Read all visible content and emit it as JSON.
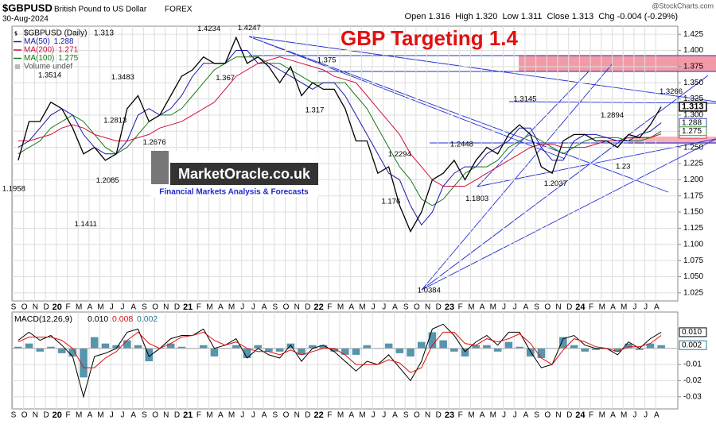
{
  "header": {
    "symbol": "$GBPUSD",
    "name": "British Pound to US Dollar",
    "exchange": "FOREX",
    "date": "30-Aug-2024",
    "quote": "Open 1.316  High 1.320  Low 1.311  Close 1.313  Chg -0.004 (-0.29%)",
    "source": "@StockCharts.com"
  },
  "logo": {
    "title": "MarketOracle.co.uk",
    "subtitle": "Financial Markets Analysis & Forecasts"
  },
  "chart_data": [
    {
      "type": "line",
      "title": "GBP Targeting 1.4",
      "title_color": "#e01010",
      "categories": [
        "S",
        "O",
        "N",
        "D",
        "20",
        "F",
        "M",
        "A",
        "M",
        "J",
        "J",
        "A",
        "S",
        "O",
        "N",
        "D",
        "21",
        "F",
        "M",
        "A",
        "M",
        "J",
        "J",
        "A",
        "S",
        "O",
        "N",
        "D",
        "22",
        "F",
        "M",
        "A",
        "M",
        "J",
        "J",
        "A",
        "S",
        "O",
        "N",
        "D",
        "23",
        "F",
        "M",
        "A",
        "M",
        "J",
        "J",
        "A",
        "S",
        "O",
        "N",
        "D",
        "24",
        "F",
        "M",
        "A",
        "M",
        "J",
        "J",
        "A"
      ],
      "series": [
        {
          "name": "$GBPUSD (Daily)",
          "legend_value": "1.313",
          "color": "#000000",
          "width": 1.3,
          "values": [
            1.23,
            1.29,
            1.29,
            1.32,
            1.31,
            1.28,
            1.24,
            1.25,
            1.23,
            1.24,
            1.31,
            1.33,
            1.29,
            1.3,
            1.33,
            1.36,
            1.37,
            1.39,
            1.38,
            1.38,
            1.42,
            1.38,
            1.39,
            1.375,
            1.35,
            1.375,
            1.33,
            1.35,
            1.34,
            1.34,
            1.31,
            1.26,
            1.26,
            1.21,
            1.22,
            1.16,
            1.12,
            1.15,
            1.2,
            1.21,
            1.23,
            1.2,
            1.23,
            1.25,
            1.24,
            1.27,
            1.285,
            1.27,
            1.22,
            1.21,
            1.26,
            1.27,
            1.27,
            1.26,
            1.26,
            1.25,
            1.27,
            1.265,
            1.285,
            1.313
          ]
        },
        {
          "name": "MA(50)",
          "legend_value": "1.288",
          "color": "#1a1aa8",
          "width": 1,
          "values": [
            1.25,
            1.26,
            1.28,
            1.3,
            1.31,
            1.3,
            1.27,
            1.25,
            1.24,
            1.24,
            1.26,
            1.3,
            1.31,
            1.3,
            1.31,
            1.33,
            1.36,
            1.38,
            1.38,
            1.38,
            1.4,
            1.4,
            1.38,
            1.38,
            1.37,
            1.36,
            1.35,
            1.34,
            1.35,
            1.35,
            1.33,
            1.3,
            1.27,
            1.24,
            1.21,
            1.2,
            1.16,
            1.13,
            1.15,
            1.19,
            1.21,
            1.22,
            1.22,
            1.24,
            1.25,
            1.26,
            1.28,
            1.28,
            1.25,
            1.23,
            1.23,
            1.26,
            1.27,
            1.27,
            1.265,
            1.26,
            1.26,
            1.27,
            1.275,
            1.288
          ]
        },
        {
          "name": "MA(200)",
          "legend_value": "1.271",
          "color": "#d0103a",
          "width": 1,
          "values": [
            1.26,
            1.26,
            1.265,
            1.27,
            1.28,
            1.285,
            1.28,
            1.27,
            1.265,
            1.26,
            1.26,
            1.265,
            1.27,
            1.28,
            1.285,
            1.29,
            1.3,
            1.31,
            1.32,
            1.34,
            1.36,
            1.37,
            1.38,
            1.385,
            1.39,
            1.385,
            1.38,
            1.375,
            1.37,
            1.36,
            1.355,
            1.35,
            1.33,
            1.31,
            1.29,
            1.27,
            1.24,
            1.22,
            1.2,
            1.19,
            1.19,
            1.19,
            1.2,
            1.21,
            1.22,
            1.23,
            1.24,
            1.25,
            1.255,
            1.255,
            1.25,
            1.25,
            1.25,
            1.255,
            1.26,
            1.26,
            1.265,
            1.265,
            1.265,
            1.271
          ]
        },
        {
          "name": "MA(100)",
          "legend_value": "1.275",
          "color": "#157a15",
          "width": 1,
          "values": [
            1.24,
            1.25,
            1.26,
            1.28,
            1.29,
            1.3,
            1.29,
            1.27,
            1.25,
            1.24,
            1.25,
            1.27,
            1.29,
            1.3,
            1.3,
            1.31,
            1.33,
            1.35,
            1.37,
            1.38,
            1.39,
            1.39,
            1.39,
            1.38,
            1.38,
            1.37,
            1.36,
            1.35,
            1.35,
            1.35,
            1.35,
            1.33,
            1.31,
            1.28,
            1.25,
            1.22,
            1.2,
            1.17,
            1.16,
            1.17,
            1.19,
            1.21,
            1.22,
            1.22,
            1.23,
            1.25,
            1.26,
            1.27,
            1.26,
            1.25,
            1.24,
            1.25,
            1.26,
            1.265,
            1.265,
            1.265,
            1.26,
            1.26,
            1.265,
            1.275
          ]
        }
      ],
      "extra_legend": "Volume undef",
      "annotations": [
        1.1958,
        1.3514,
        1.1411,
        1.2813,
        1.2085,
        1.3483,
        1.2676,
        1.4234,
        1.367,
        1.4247,
        1.375,
        1.317,
        1.2294,
        1.176,
        1.0384,
        1.2448,
        1.1803,
        1.3145,
        1.2037,
        1.2894,
        1.23,
        1.3266
      ],
      "ylim": [
        1.0125,
        1.4375
      ],
      "yticks": [
        1.025,
        {
          "value": 1.05,
          "label": "1.050"
        },
        1.075,
        {
          "value": 1.1,
          "label": "1.100"
        },
        1.125,
        {
          "value": 1.15,
          "label": "1.150"
        },
        1.175,
        {
          "value": 1.2,
          "label": "1.200"
        },
        1.225,
        {
          "value": 1.25,
          "label": "1.250"
        },
        1.275,
        {
          "value": 1.3,
          "label": "1.300"
        },
        1.325,
        {
          "value": 1.35,
          "label": "1.350"
        },
        1.375,
        {
          "value": 1.4,
          "label": "1.400"
        },
        1.425
      ],
      "grid": true
    },
    {
      "type": "macd",
      "label": "MACD(12,26,9)",
      "legend_values": [
        "0.010",
        "0.008",
        "0.002"
      ],
      "series": [
        {
          "color": "#000000",
          "values": [
            0.005,
            0.01,
            0.005,
            0.008,
            0.002,
            -0.005,
            -0.03,
            -0.005,
            -0.003,
            0.0,
            0.01,
            0.012,
            -0.005,
            0.0,
            0.006,
            0.008,
            0.008,
            0.012,
            0.0,
            0.002,
            0.006,
            -0.006,
            0.0,
            -0.004,
            -0.006,
            0.002,
            -0.008,
            0.0,
            0.002,
            -0.002,
            -0.008,
            -0.014,
            -0.008,
            -0.01,
            -0.004,
            -0.012,
            -0.02,
            -0.008,
            0.012,
            0.015,
            0.008,
            -0.002,
            0.004,
            0.008,
            0.002,
            0.01,
            0.01,
            -0.002,
            -0.012,
            -0.01,
            0.006,
            0.008,
            0.002,
            0.0,
            0.0,
            -0.004,
            0.004,
            0.0,
            0.006,
            0.01
          ]
        },
        {
          "color": "#e01010",
          "values": [
            0.004,
            0.007,
            0.007,
            0.007,
            0.005,
            0.0,
            -0.012,
            -0.012,
            -0.006,
            -0.002,
            0.005,
            0.01,
            0.003,
            0.0,
            0.003,
            0.007,
            0.008,
            0.01,
            0.005,
            0.002,
            0.004,
            0.0,
            -0.002,
            -0.002,
            -0.004,
            -0.001,
            -0.004,
            -0.002,
            0.0,
            0.0,
            -0.004,
            -0.01,
            -0.01,
            -0.01,
            -0.007,
            -0.009,
            -0.015,
            -0.012,
            0.002,
            0.01,
            0.01,
            0.003,
            0.002,
            0.006,
            0.004,
            0.006,
            0.009,
            0.003,
            -0.006,
            -0.01,
            -0.001,
            0.006,
            0.004,
            0.001,
            0.0,
            -0.002,
            0.001,
            0.001,
            0.003,
            0.008
          ]
        },
        {
          "color": "#2a7a9a",
          "kind": "histogram",
          "values": [
            0.001,
            0.003,
            -0.002,
            0.001,
            -0.003,
            -0.005,
            -0.018,
            0.007,
            0.003,
            0.002,
            0.005,
            0.002,
            -0.008,
            0.0,
            0.003,
            0.001,
            0.0,
            0.002,
            -0.005,
            0.0,
            0.002,
            -0.006,
            0.002,
            -0.002,
            -0.002,
            0.003,
            -0.004,
            0.002,
            0.002,
            -0.002,
            -0.004,
            -0.004,
            0.002,
            0.0,
            0.003,
            -0.003,
            -0.005,
            0.004,
            0.01,
            0.005,
            -0.002,
            -0.005,
            0.002,
            0.002,
            -0.002,
            0.004,
            0.001,
            -0.005,
            -0.006,
            0.0,
            0.007,
            0.002,
            -0.002,
            -0.001,
            0.0,
            -0.002,
            0.003,
            -0.001,
            0.003,
            0.002
          ]
        }
      ],
      "ylim": [
        -0.0375,
        0.0225
      ],
      "yticks": [
        -0.03,
        -0.02,
        -0.01
      ],
      "grid": true
    }
  ]
}
